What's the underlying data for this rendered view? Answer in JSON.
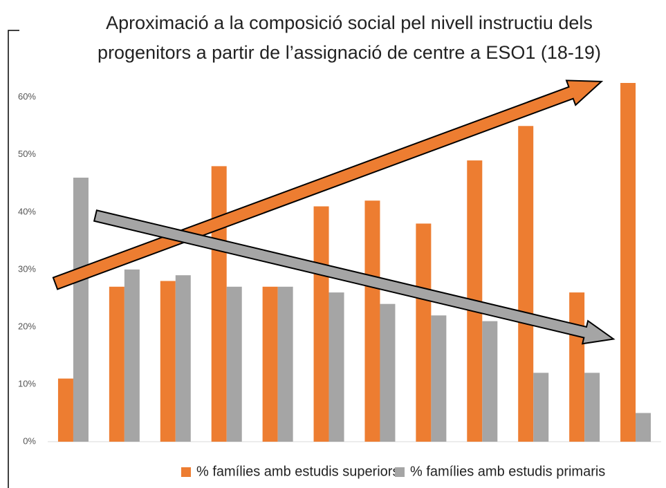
{
  "chart_data": {
    "type": "bar",
    "title": [
      "Aproximació a la composició social pel nivell instructiu dels",
      "progenitors a partir de l’assignació de centre a ESO1 (18-19)"
    ],
    "categories": [
      null,
      null,
      null,
      null,
      null,
      null,
      null,
      null,
      null,
      null,
      null,
      null
    ],
    "series": [
      {
        "name": "% famílies amb estudis superiors",
        "color": "#ed7d31",
        "values": [
          11,
          27,
          28,
          48,
          27,
          41,
          42,
          38,
          49,
          55,
          26,
          62.5
        ]
      },
      {
        "name": "% famílies amb estudis primaris",
        "color": "#a5a5a5",
        "values": [
          46,
          30,
          29,
          27,
          27,
          26,
          24,
          22,
          21,
          12,
          12,
          5
        ]
      }
    ],
    "ylim": [
      0,
      62.5
    ],
    "yticks": [
      {
        "value": 0,
        "label": "0%"
      },
      {
        "value": 10,
        "label": "10%"
      },
      {
        "value": 20,
        "label": "20%"
      },
      {
        "value": 30,
        "label": "30%"
      },
      {
        "value": 40,
        "label": "40%"
      },
      {
        "value": 50,
        "label": "50%"
      },
      {
        "value": 60,
        "label": "60%"
      }
    ],
    "grid": false,
    "legend": "bottom"
  }
}
